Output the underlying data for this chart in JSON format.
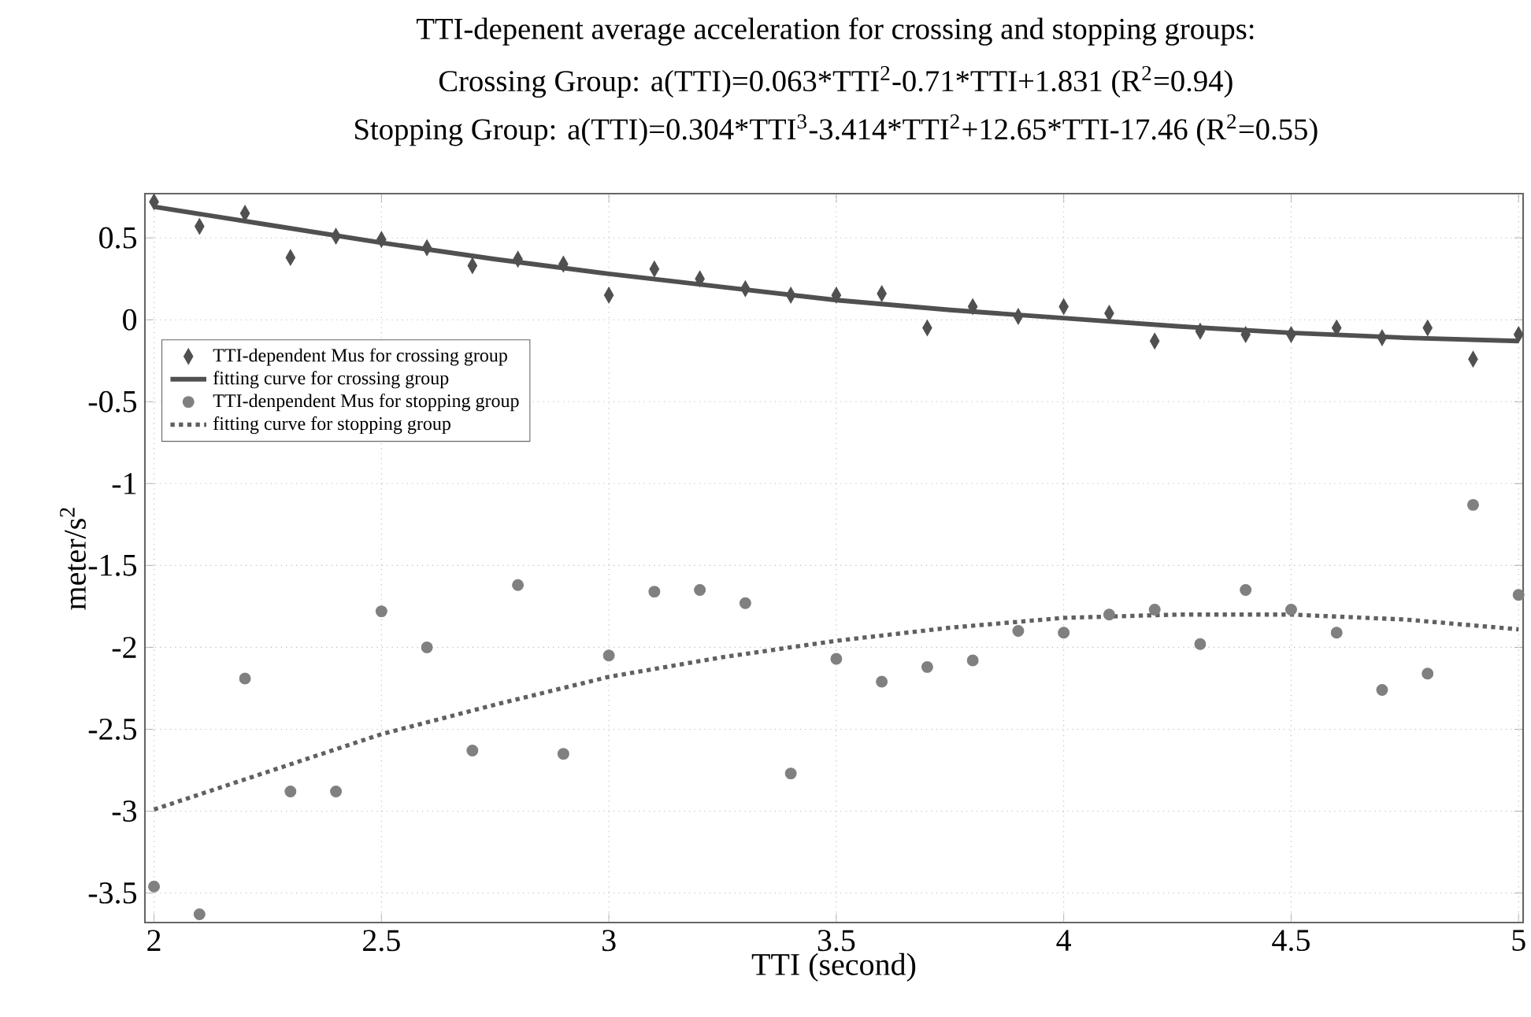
{
  "chart_data": {
    "type": "scatter",
    "title": "TTI-depenent average acceleration for crossing and stopping groups:",
    "annotations": [
      "Crossing Group: a(TTI)=0.063*TTI$^{2}$-0.71*TTI+1.831 (R$^{2}$=0.94)",
      "Stopping Group: a(TTI)=0.304*TTI$^{3}$-3.414*TTI$^{2}$+12.65*TTI-17.46 (R$^{2}$=0.55)"
    ],
    "xlabel": "TTI (second)",
    "ylabel": "meter/s$^{2}$",
    "xlim": [
      1.98,
      5.01
    ],
    "ylim": [
      -3.68,
      0.77
    ],
    "xticks": [
      2,
      2.5,
      3,
      3.5,
      4,
      4.5,
      5
    ],
    "yticks": [
      -3.5,
      -3,
      -2.5,
      -2,
      -1.5,
      -1,
      -0.5,
      0,
      0.5
    ],
    "grid": true,
    "legend": "left",
    "series": [
      {
        "name": "TTI-dependent Mus for crossing group",
        "type": "scatter",
        "marker": "diamond",
        "color": "#505050",
        "x": [
          2.0,
          2.1,
          2.2,
          2.3,
          2.4,
          2.5,
          2.6,
          2.7,
          2.8,
          2.9,
          3.0,
          3.1,
          3.2,
          3.3,
          3.4,
          3.5,
          3.6,
          3.7,
          3.8,
          3.9,
          4.0,
          4.1,
          4.2,
          4.3,
          4.4,
          4.5,
          4.6,
          4.7,
          4.8,
          4.9,
          5.0
        ],
        "values": [
          0.72,
          0.57,
          0.65,
          0.38,
          0.51,
          0.49,
          0.44,
          0.33,
          0.37,
          0.34,
          0.15,
          0.31,
          0.25,
          0.19,
          0.15,
          0.15,
          0.16,
          -0.05,
          0.08,
          0.02,
          0.08,
          0.04,
          -0.13,
          -0.07,
          -0.09,
          -0.09,
          -0.05,
          -0.11,
          -0.05,
          -0.24,
          -0.09
        ]
      },
      {
        "name": "fitting curve for crossing group",
        "type": "line",
        "line_style": "solid",
        "color": "#505050",
        "x": [
          2.0,
          2.25,
          2.5,
          2.75,
          3.0,
          3.25,
          3.5,
          3.75,
          4.0,
          4.25,
          4.5,
          4.75,
          5.0
        ],
        "values": [
          0.69,
          0.58,
          0.47,
          0.37,
          0.28,
          0.2,
          0.12,
          0.06,
          0.01,
          -0.04,
          -0.08,
          -0.11,
          -0.13
        ]
      },
      {
        "name": "TTI-denpendent Mus for stopping group",
        "type": "scatter",
        "marker": "circle",
        "color": "#808080",
        "x": [
          2.0,
          2.1,
          2.2,
          2.3,
          2.4,
          2.5,
          2.6,
          2.7,
          2.8,
          2.9,
          3.0,
          3.1,
          3.2,
          3.3,
          3.4,
          3.5,
          3.6,
          3.7,
          3.8,
          3.9,
          4.0,
          4.1,
          4.2,
          4.3,
          4.4,
          4.5,
          4.6,
          4.7,
          4.8,
          4.9,
          5.0
        ],
        "values": [
          -3.46,
          -3.63,
          -2.19,
          -2.88,
          -2.88,
          -1.78,
          -2.0,
          -2.63,
          -1.62,
          -2.65,
          -2.05,
          -1.66,
          -1.65,
          -1.73,
          -2.77,
          -2.07,
          -2.21,
          -2.12,
          -2.08,
          -1.9,
          -1.91,
          -1.8,
          -1.77,
          -1.98,
          -1.65,
          -1.77,
          -1.91,
          -2.26,
          -2.16,
          -1.13,
          -1.68
        ]
      },
      {
        "name": "fitting curve for stopping group",
        "type": "line",
        "line_style": "dotted",
        "color": "#606060",
        "x": [
          2.0,
          2.25,
          2.5,
          2.75,
          3.0,
          3.25,
          3.5,
          3.75,
          4.0,
          4.25,
          4.5,
          4.75,
          5.0
        ],
        "values": [
          -2.99,
          -2.76,
          -2.53,
          -2.35,
          -2.18,
          -2.06,
          -1.96,
          -1.88,
          -1.82,
          -1.8,
          -1.8,
          -1.83,
          -1.89
        ]
      }
    ]
  }
}
